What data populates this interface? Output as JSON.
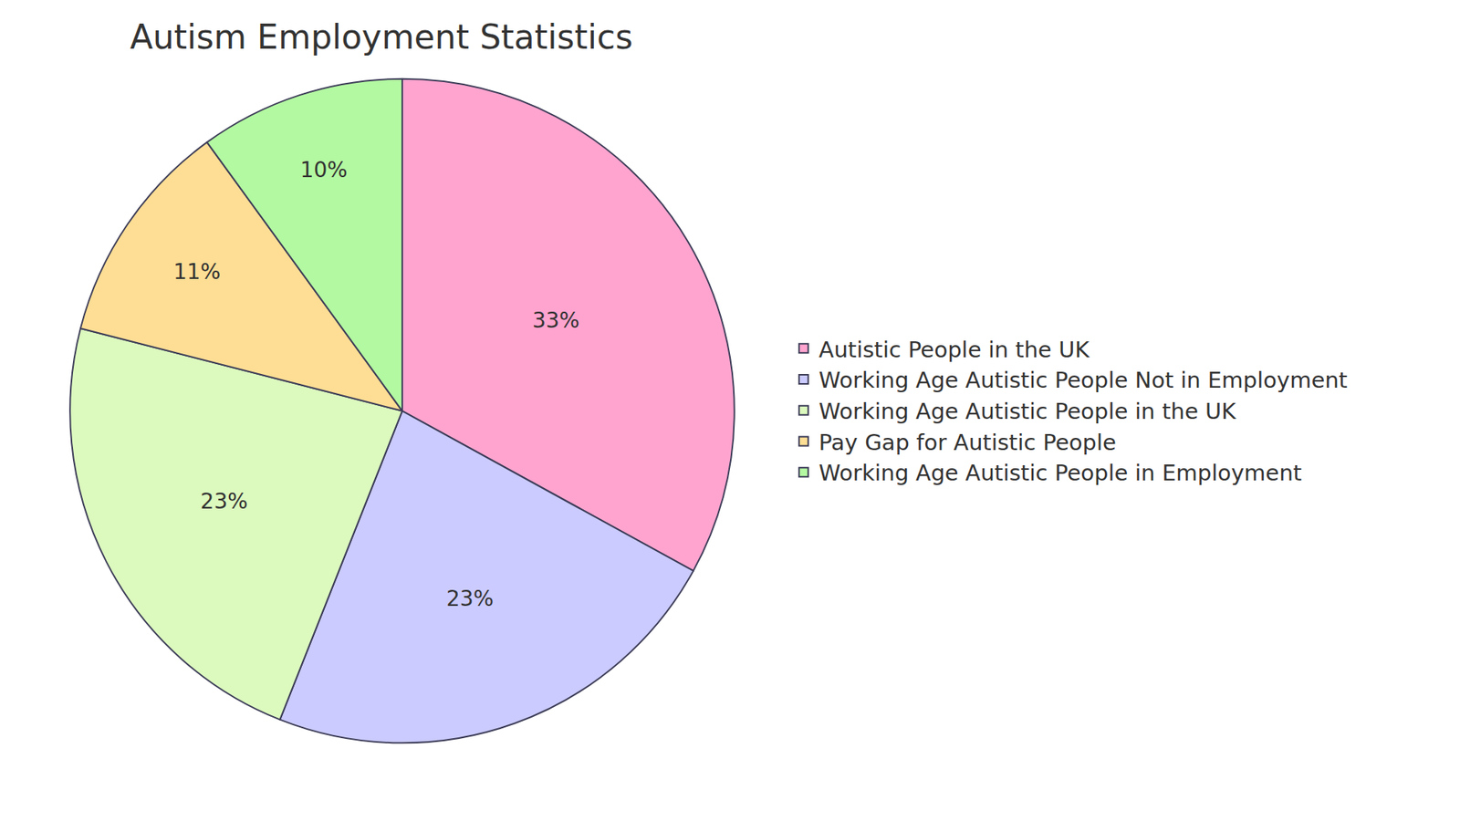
{
  "chart_data": {
    "type": "pie",
    "title": "Autism Employment Statistics",
    "categories": [
      "Autistic People in the UK",
      "Working Age Autistic People Not in Employment",
      "Working Age Autistic People in the UK",
      "Pay Gap for Autistic People",
      "Working Age Autistic People in Employment"
    ],
    "values": [
      33,
      23,
      23,
      11,
      10
    ],
    "value_labels": [
      "33%",
      "23%",
      "23%",
      "11%",
      "10%"
    ],
    "colors": [
      "#ffa4cf",
      "#cbcbff",
      "#dcfabe",
      "#fede94",
      "#b3f9a1"
    ],
    "legend": "right",
    "data_labels": true
  }
}
